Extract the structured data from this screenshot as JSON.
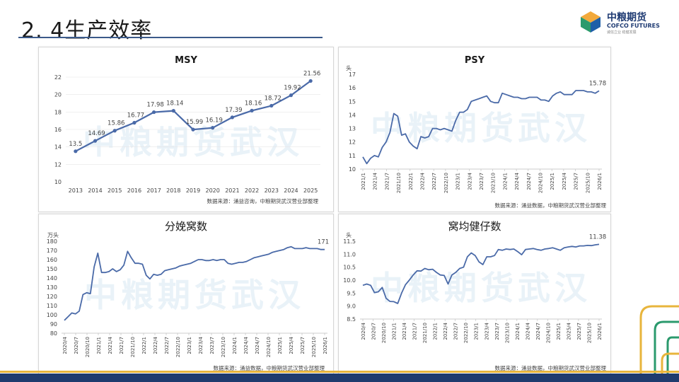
{
  "page": {
    "title": "2. 4生产效率",
    "logo_cn": "中粮期货",
    "logo_en": "COFCO FUTURES",
    "logo_sub": "诚信立业 稳健发展",
    "watermark": "中粮期货武汉"
  },
  "colors": {
    "line": "#4a6aa8",
    "grid": "#e6e6e6",
    "text": "#444444",
    "title": "#1a1a1a"
  },
  "chart_data": [
    {
      "id": "msy",
      "type": "line",
      "title": "MSY",
      "unit": "",
      "x": [
        "2013",
        "2014",
        "2015",
        "2016",
        "2017",
        "2018",
        "2019",
        "2020",
        "2021",
        "2022",
        "2023",
        "2024",
        "2025"
      ],
      "values": [
        13.5,
        14.69,
        15.86,
        16.77,
        17.98,
        18.14,
        15.99,
        16.19,
        17.39,
        18.16,
        18.72,
        19.92,
        21.56
      ],
      "data_labels": [
        "13.5",
        "14.69",
        "15.86",
        "16.77",
        "17.98",
        "18.14",
        "15.99",
        "16.19",
        "17.39",
        "18.16",
        "18.72",
        "19.92",
        "21.56"
      ],
      "ylim": [
        10,
        22
      ],
      "yticks": [
        10,
        12,
        14,
        16,
        18,
        20,
        22
      ],
      "markers": true,
      "source": "数据来源：涌益咨询，中粮期货武汉营业部整理"
    },
    {
      "id": "psy",
      "type": "line",
      "title": "PSY",
      "unit": "头",
      "ylim": [
        10,
        17
      ],
      "yticks": [
        10,
        11,
        12,
        13,
        14,
        15,
        16,
        17
      ],
      "xticks": [
        "2021/1",
        "2021/4",
        "2021/7",
        "2021/10",
        "2022/1",
        "2022/4",
        "2022/7",
        "2022/10",
        "2023/1",
        "2023/4",
        "2023/7",
        "2023/10",
        "2024/1",
        "2024/4",
        "2024/7",
        "2024/10",
        "2025/1",
        "2025/4",
        "2025/7",
        "2025/10",
        "2026/1"
      ],
      "values": [
        10.9,
        10.4,
        10.8,
        11.0,
        10.9,
        11.6,
        12.0,
        12.7,
        14.1,
        13.9,
        12.5,
        12.6,
        12.0,
        11.7,
        11.5,
        12.4,
        12.3,
        12.4,
        13.0,
        13.0,
        12.9,
        13.0,
        12.9,
        12.8,
        13.6,
        14.2,
        14.2,
        14.4,
        15.0,
        15.1,
        15.2,
        15.3,
        15.4,
        15.0,
        14.9,
        14.9,
        15.6,
        15.5,
        15.4,
        15.3,
        15.3,
        15.2,
        15.2,
        15.3,
        15.3,
        15.3,
        15.1,
        15.1,
        15.0,
        15.4,
        15.6,
        15.7,
        15.5,
        15.5,
        15.5,
        15.8,
        15.8,
        15.8,
        15.7,
        15.7,
        15.6,
        15.78
      ],
      "last_label": "15.78",
      "source": "数据来源：涌益数据，中粮期货武汉营业部整理"
    },
    {
      "id": "farrowing",
      "type": "line",
      "title": "分娩窝数",
      "unit": "万头",
      "ylim": [
        80,
        180
      ],
      "yticks": [
        80,
        90,
        100,
        110,
        120,
        130,
        140,
        150,
        160,
        170,
        180
      ],
      "xticks": [
        "2020/4",
        "2020/7",
        "2020/10",
        "2021/1",
        "2021/4",
        "2021/7",
        "2021/10",
        "2022/1",
        "2022/4",
        "2022/7",
        "2022/10",
        "2023/1",
        "2023/4",
        "2023/7",
        "2023/10",
        "2024/1",
        "2024/4",
        "2024/7",
        "2024/10",
        "2025/1",
        "2025/4",
        "2025/7",
        "2025/10",
        "2026/1"
      ],
      "values": [
        94,
        98,
        102,
        101,
        104,
        122,
        124,
        123,
        152,
        167,
        146,
        146,
        147,
        150,
        147,
        149,
        154,
        169,
        162,
        156,
        156,
        155,
        143,
        139,
        144,
        143,
        144,
        148,
        149,
        150,
        151,
        153,
        154,
        155,
        156,
        158,
        160,
        160,
        159,
        159,
        160,
        159,
        160,
        160,
        156,
        155,
        156,
        157,
        157,
        158,
        160,
        162,
        163,
        164,
        165,
        166,
        168,
        169,
        170,
        171,
        173,
        174,
        172,
        172,
        172,
        173,
        172,
        172,
        172,
        171,
        171
      ],
      "last_label": "171",
      "source": "数据来源：涌益数据，中粮期货武汉营业部整理"
    },
    {
      "id": "litter",
      "type": "line",
      "title": "窝均健仔数",
      "unit": "头",
      "ylim": [
        8.5,
        11.5
      ],
      "yticks": [
        8.5,
        9.0,
        9.5,
        10.0,
        10.5,
        11.0,
        11.5
      ],
      "ytick_labels": [
        "8.5",
        "9.0",
        "9.5",
        "10.0",
        "10.5",
        "11.0",
        "11.5"
      ],
      "xticks": [
        "2020/4",
        "2020/7",
        "2020/10",
        "2021/1",
        "2021/4",
        "2021/7",
        "2021/10",
        "2022/1",
        "2022/4",
        "2022/7",
        "2022/10",
        "2023/1",
        "2023/4",
        "2023/7",
        "2023/10",
        "2024/1",
        "2024/4",
        "2024/7",
        "2024/10",
        "2025/1",
        "2025/4",
        "2025/7",
        "2025/10",
        "2026/1"
      ],
      "values": [
        9.8,
        9.85,
        9.8,
        9.52,
        9.55,
        9.72,
        9.3,
        9.18,
        9.17,
        9.1,
        9.5,
        9.82,
        10.0,
        10.2,
        10.36,
        10.35,
        10.45,
        10.4,
        10.42,
        10.3,
        10.2,
        10.18,
        9.85,
        10.2,
        10.3,
        10.45,
        10.5,
        10.9,
        11.05,
        10.95,
        10.7,
        10.6,
        10.9,
        10.9,
        10.95,
        11.18,
        11.15,
        11.2,
        11.18,
        11.2,
        11.1,
        10.98,
        11.18,
        11.2,
        11.22,
        11.18,
        11.15,
        11.2,
        11.22,
        11.25,
        11.2,
        11.15,
        11.25,
        11.28,
        11.3,
        11.28,
        11.32,
        11.32,
        11.34,
        11.33,
        11.36,
        11.38
      ],
      "last_label": "11.38",
      "source": "数据来源：涌益数据，中粮期货武汉营业部整理"
    }
  ]
}
